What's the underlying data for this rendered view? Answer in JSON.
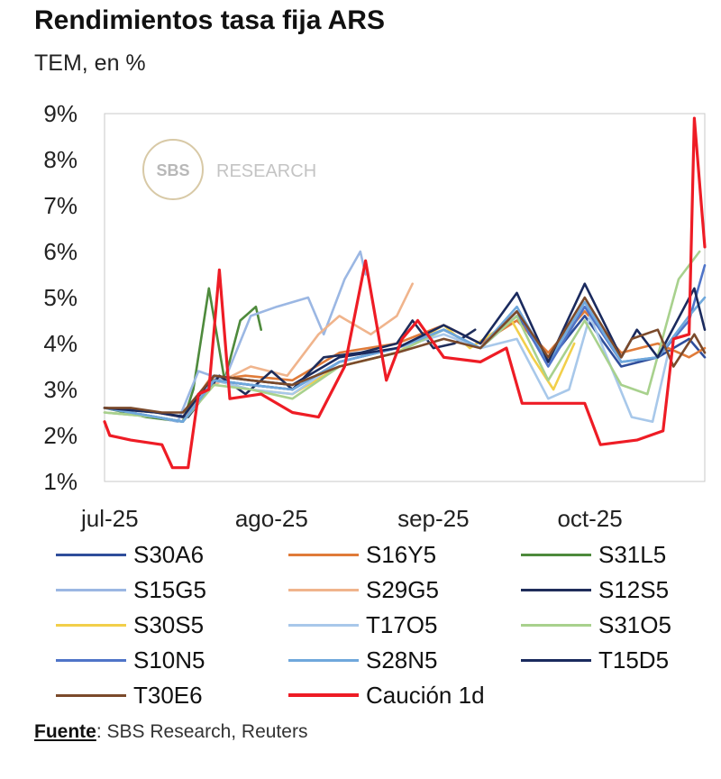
{
  "header": {
    "title": "Rendimientos tasa fija ARS",
    "subtitle": "TEM, en %"
  },
  "watermark": {
    "logo_text": "SBS",
    "text": "RESEARCH"
  },
  "source": {
    "label": "Fuente",
    "text": ": SBS Research, Reuters"
  },
  "chart_data": {
    "type": "line",
    "title": "Rendimientos tasa fija ARS",
    "subtitle": "TEM, en %",
    "x_ticks": [
      "jul-25",
      "ago-25",
      "sep-25",
      "oct-25"
    ],
    "x_tick_dates": [
      "2025-07-01",
      "2025-08-01",
      "2025-09-01",
      "2025-10-01"
    ],
    "x_range": [
      "2025-06-30",
      "2025-10-23"
    ],
    "y_ticks": [
      "1%",
      "2%",
      "3%",
      "4%",
      "5%",
      "6%",
      "7%",
      "8%",
      "9%"
    ],
    "ylim": [
      1,
      9
    ],
    "grid": false,
    "legend_position": "bottom",
    "series": [
      {
        "name": "S30A6",
        "color": "#2f4e9b",
        "points": [
          [
            "2025-06-30",
            2.6
          ],
          [
            "2025-07-10",
            2.4
          ],
          [
            "2025-07-15",
            2.3
          ],
          [
            "2025-07-21",
            3.2
          ],
          [
            "2025-07-28",
            3.1
          ],
          [
            "2025-08-05",
            3.0
          ],
          [
            "2025-08-14",
            3.6
          ],
          [
            "2025-08-25",
            3.9
          ],
          [
            "2025-09-03",
            4.3
          ],
          [
            "2025-09-10",
            3.9
          ],
          [
            "2025-09-17",
            4.6
          ],
          [
            "2025-09-23",
            3.6
          ],
          [
            "2025-09-30",
            4.6
          ],
          [
            "2025-10-07",
            3.5
          ],
          [
            "2025-10-14",
            3.7
          ],
          [
            "2025-10-20",
            4.1
          ],
          [
            "2025-10-23",
            3.7
          ]
        ]
      },
      {
        "name": "S16Y5",
        "color": "#e07b39",
        "points": [
          [
            "2025-06-30",
            2.6
          ],
          [
            "2025-07-10",
            2.5
          ],
          [
            "2025-07-15",
            2.4
          ],
          [
            "2025-07-20",
            3.2
          ],
          [
            "2025-07-27",
            3.3
          ],
          [
            "2025-08-05",
            3.2
          ],
          [
            "2025-08-14",
            3.8
          ],
          [
            "2025-08-25",
            4.0
          ],
          [
            "2025-09-03",
            4.4
          ],
          [
            "2025-09-10",
            4.0
          ],
          [
            "2025-09-17",
            4.5
          ],
          [
            "2025-09-23",
            3.8
          ],
          [
            "2025-09-30",
            4.7
          ],
          [
            "2025-10-07",
            3.8
          ],
          [
            "2025-10-14",
            4.0
          ],
          [
            "2025-10-20",
            3.7
          ],
          [
            "2025-10-23",
            3.9
          ]
        ]
      },
      {
        "name": "S31L5",
        "color": "#4e8a3c",
        "points": [
          [
            "2025-06-30",
            2.6
          ],
          [
            "2025-07-08",
            2.4
          ],
          [
            "2025-07-15",
            2.3
          ],
          [
            "2025-07-17",
            3.0
          ],
          [
            "2025-07-20",
            5.2
          ],
          [
            "2025-07-23",
            3.2
          ],
          [
            "2025-07-26",
            4.5
          ],
          [
            "2025-07-29",
            4.8
          ],
          [
            "2025-07-30",
            4.3
          ]
        ]
      },
      {
        "name": "S15G5",
        "color": "#9bb7e3",
        "points": [
          [
            "2025-06-30",
            2.6
          ],
          [
            "2025-07-10",
            2.4
          ],
          [
            "2025-07-14",
            2.3
          ],
          [
            "2025-07-18",
            3.4
          ],
          [
            "2025-07-23",
            3.2
          ],
          [
            "2025-07-28",
            4.6
          ],
          [
            "2025-08-02",
            4.8
          ],
          [
            "2025-08-08",
            5.0
          ],
          [
            "2025-08-11",
            4.2
          ],
          [
            "2025-08-15",
            5.4
          ],
          [
            "2025-08-18",
            6.0
          ],
          [
            "2025-08-19",
            5.5
          ]
        ]
      },
      {
        "name": "S29G5",
        "color": "#f0b48c",
        "points": [
          [
            "2025-06-30",
            2.6
          ],
          [
            "2025-07-10",
            2.5
          ],
          [
            "2025-07-15",
            2.4
          ],
          [
            "2025-07-21",
            3.1
          ],
          [
            "2025-07-28",
            3.5
          ],
          [
            "2025-08-04",
            3.3
          ],
          [
            "2025-08-10",
            4.2
          ],
          [
            "2025-08-14",
            4.6
          ],
          [
            "2025-08-20",
            4.2
          ],
          [
            "2025-08-25",
            4.6
          ],
          [
            "2025-08-28",
            5.3
          ]
        ]
      },
      {
        "name": "S12S5",
        "color": "#1f2d5a",
        "points": [
          [
            "2025-06-30",
            2.6
          ],
          [
            "2025-07-10",
            2.5
          ],
          [
            "2025-07-16",
            2.4
          ],
          [
            "2025-07-22",
            3.3
          ],
          [
            "2025-07-27",
            2.9
          ],
          [
            "2025-08-01",
            3.4
          ],
          [
            "2025-08-05",
            3.0
          ],
          [
            "2025-08-11",
            3.7
          ],
          [
            "2025-08-18",
            3.8
          ],
          [
            "2025-08-25",
            4.0
          ],
          [
            "2025-08-28",
            4.5
          ],
          [
            "2025-09-01",
            3.9
          ],
          [
            "2025-09-05",
            4.0
          ],
          [
            "2025-09-09",
            4.3
          ]
        ]
      },
      {
        "name": "S30S5",
        "color": "#f2cf4a",
        "points": [
          [
            "2025-06-30",
            2.5
          ],
          [
            "2025-07-10",
            2.4
          ],
          [
            "2025-07-15",
            2.3
          ],
          [
            "2025-07-21",
            3.2
          ],
          [
            "2025-07-28",
            3.0
          ],
          [
            "2025-08-05",
            2.9
          ],
          [
            "2025-08-14",
            3.5
          ],
          [
            "2025-08-25",
            3.8
          ],
          [
            "2025-09-03",
            4.4
          ],
          [
            "2025-09-08",
            3.9
          ],
          [
            "2025-09-16",
            4.5
          ],
          [
            "2025-09-20",
            3.7
          ],
          [
            "2025-09-24",
            3.0
          ],
          [
            "2025-09-28",
            4.0
          ]
        ]
      },
      {
        "name": "T17O5",
        "color": "#a8c8ea",
        "points": [
          [
            "2025-06-30",
            2.5
          ],
          [
            "2025-07-10",
            2.4
          ],
          [
            "2025-07-15",
            2.3
          ],
          [
            "2025-07-21",
            3.2
          ],
          [
            "2025-07-28",
            3.0
          ],
          [
            "2025-08-05",
            2.9
          ],
          [
            "2025-08-14",
            3.6
          ],
          [
            "2025-08-25",
            3.9
          ],
          [
            "2025-09-03",
            4.2
          ],
          [
            "2025-09-10",
            3.9
          ],
          [
            "2025-09-17",
            4.1
          ],
          [
            "2025-09-23",
            2.8
          ],
          [
            "2025-09-27",
            3.0
          ],
          [
            "2025-10-01",
            4.6
          ],
          [
            "2025-10-05",
            3.5
          ],
          [
            "2025-10-09",
            2.4
          ],
          [
            "2025-10-13",
            2.3
          ],
          [
            "2025-10-16",
            3.8
          ]
        ]
      },
      {
        "name": "S31O5",
        "color": "#a8d18d",
        "points": [
          [
            "2025-06-30",
            2.5
          ],
          [
            "2025-07-10",
            2.4
          ],
          [
            "2025-07-15",
            2.3
          ],
          [
            "2025-07-21",
            3.1
          ],
          [
            "2025-07-28",
            3.0
          ],
          [
            "2025-08-05",
            2.8
          ],
          [
            "2025-08-14",
            3.5
          ],
          [
            "2025-08-25",
            3.8
          ],
          [
            "2025-09-03",
            4.3
          ],
          [
            "2025-09-10",
            3.9
          ],
          [
            "2025-09-17",
            4.6
          ],
          [
            "2025-09-23",
            3.2
          ],
          [
            "2025-09-30",
            4.5
          ],
          [
            "2025-10-07",
            3.1
          ],
          [
            "2025-10-12",
            2.9
          ],
          [
            "2025-10-18",
            5.4
          ],
          [
            "2025-10-22",
            6.0
          ]
        ]
      },
      {
        "name": "S10N5",
        "color": "#4f74c8",
        "points": [
          [
            "2025-06-30",
            2.6
          ],
          [
            "2025-07-10",
            2.4
          ],
          [
            "2025-07-15",
            2.3
          ],
          [
            "2025-07-21",
            3.2
          ],
          [
            "2025-07-28",
            3.1
          ],
          [
            "2025-08-05",
            3.0
          ],
          [
            "2025-08-14",
            3.6
          ],
          [
            "2025-08-25",
            3.9
          ],
          [
            "2025-09-03",
            4.3
          ],
          [
            "2025-09-10",
            3.9
          ],
          [
            "2025-09-17",
            4.7
          ],
          [
            "2025-09-23",
            3.5
          ],
          [
            "2025-09-30",
            4.8
          ],
          [
            "2025-10-07",
            3.6
          ],
          [
            "2025-10-14",
            3.7
          ],
          [
            "2025-10-20",
            4.5
          ],
          [
            "2025-10-23",
            5.7
          ]
        ]
      },
      {
        "name": "S28N5",
        "color": "#6fa8dc",
        "points": [
          [
            "2025-06-30",
            2.6
          ],
          [
            "2025-07-10",
            2.4
          ],
          [
            "2025-07-15",
            2.3
          ],
          [
            "2025-07-21",
            3.2
          ],
          [
            "2025-07-28",
            3.1
          ],
          [
            "2025-08-05",
            3.0
          ],
          [
            "2025-08-14",
            3.6
          ],
          [
            "2025-08-25",
            3.9
          ],
          [
            "2025-09-03",
            4.3
          ],
          [
            "2025-09-10",
            3.9
          ],
          [
            "2025-09-17",
            4.8
          ],
          [
            "2025-09-23",
            3.6
          ],
          [
            "2025-09-30",
            4.9
          ],
          [
            "2025-10-07",
            3.6
          ],
          [
            "2025-10-14",
            3.7
          ],
          [
            "2025-10-20",
            4.6
          ],
          [
            "2025-10-23",
            5.0
          ]
        ]
      },
      {
        "name": "T15D5",
        "color": "#1a2a5e",
        "points": [
          [
            "2025-06-30",
            2.6
          ],
          [
            "2025-07-10",
            2.5
          ],
          [
            "2025-07-15",
            2.4
          ],
          [
            "2025-07-21",
            3.3
          ],
          [
            "2025-07-28",
            3.2
          ],
          [
            "2025-08-05",
            3.1
          ],
          [
            "2025-08-14",
            3.7
          ],
          [
            "2025-08-25",
            3.9
          ],
          [
            "2025-09-03",
            4.4
          ],
          [
            "2025-09-10",
            4.0
          ],
          [
            "2025-09-17",
            5.1
          ],
          [
            "2025-09-23",
            3.6
          ],
          [
            "2025-09-30",
            5.3
          ],
          [
            "2025-10-07",
            3.7
          ],
          [
            "2025-10-10",
            4.3
          ],
          [
            "2025-10-14",
            3.7
          ],
          [
            "2025-10-21",
            5.2
          ],
          [
            "2025-10-23",
            4.3
          ]
        ]
      },
      {
        "name": "T30E6",
        "color": "#7b4a2b",
        "points": [
          [
            "2025-06-30",
            2.6
          ],
          [
            "2025-07-05",
            2.6
          ],
          [
            "2025-07-11",
            2.5
          ],
          [
            "2025-07-15",
            2.5
          ],
          [
            "2025-07-21",
            3.3
          ],
          [
            "2025-07-28",
            3.2
          ],
          [
            "2025-08-05",
            3.1
          ],
          [
            "2025-08-14",
            3.5
          ],
          [
            "2025-08-25",
            3.8
          ],
          [
            "2025-09-03",
            4.1
          ],
          [
            "2025-09-10",
            3.9
          ],
          [
            "2025-09-17",
            4.7
          ],
          [
            "2025-09-23",
            3.7
          ],
          [
            "2025-09-30",
            5.0
          ],
          [
            "2025-10-07",
            3.7
          ],
          [
            "2025-10-09",
            4.1
          ],
          [
            "2025-10-14",
            4.3
          ],
          [
            "2025-10-17",
            3.5
          ],
          [
            "2025-10-21",
            4.2
          ],
          [
            "2025-10-23",
            3.8
          ]
        ]
      },
      {
        "name": "Caución 1d",
        "color": "#ee1c25",
        "points": [
          [
            "2025-06-30",
            2.3
          ],
          [
            "2025-07-01",
            2.0
          ],
          [
            "2025-07-05",
            1.9
          ],
          [
            "2025-07-11",
            1.8
          ],
          [
            "2025-07-13",
            1.3
          ],
          [
            "2025-07-16",
            1.3
          ],
          [
            "2025-07-18",
            2.9
          ],
          [
            "2025-07-20",
            3.0
          ],
          [
            "2025-07-22",
            5.6
          ],
          [
            "2025-07-24",
            2.8
          ],
          [
            "2025-07-30",
            2.9
          ],
          [
            "2025-08-05",
            2.5
          ],
          [
            "2025-08-10",
            2.4
          ],
          [
            "2025-08-15",
            3.5
          ],
          [
            "2025-08-19",
            5.8
          ],
          [
            "2025-08-23",
            3.2
          ],
          [
            "2025-08-26",
            4.1
          ],
          [
            "2025-08-29",
            4.5
          ],
          [
            "2025-09-03",
            3.7
          ],
          [
            "2025-09-10",
            3.6
          ],
          [
            "2025-09-15",
            3.9
          ],
          [
            "2025-09-18",
            2.7
          ],
          [
            "2025-09-30",
            2.7
          ],
          [
            "2025-10-03",
            1.8
          ],
          [
            "2025-10-10",
            1.9
          ],
          [
            "2025-10-15",
            2.1
          ],
          [
            "2025-10-17",
            4.1
          ],
          [
            "2025-10-20",
            4.2
          ],
          [
            "2025-10-21",
            8.9
          ],
          [
            "2025-10-23",
            6.1
          ]
        ]
      }
    ]
  }
}
